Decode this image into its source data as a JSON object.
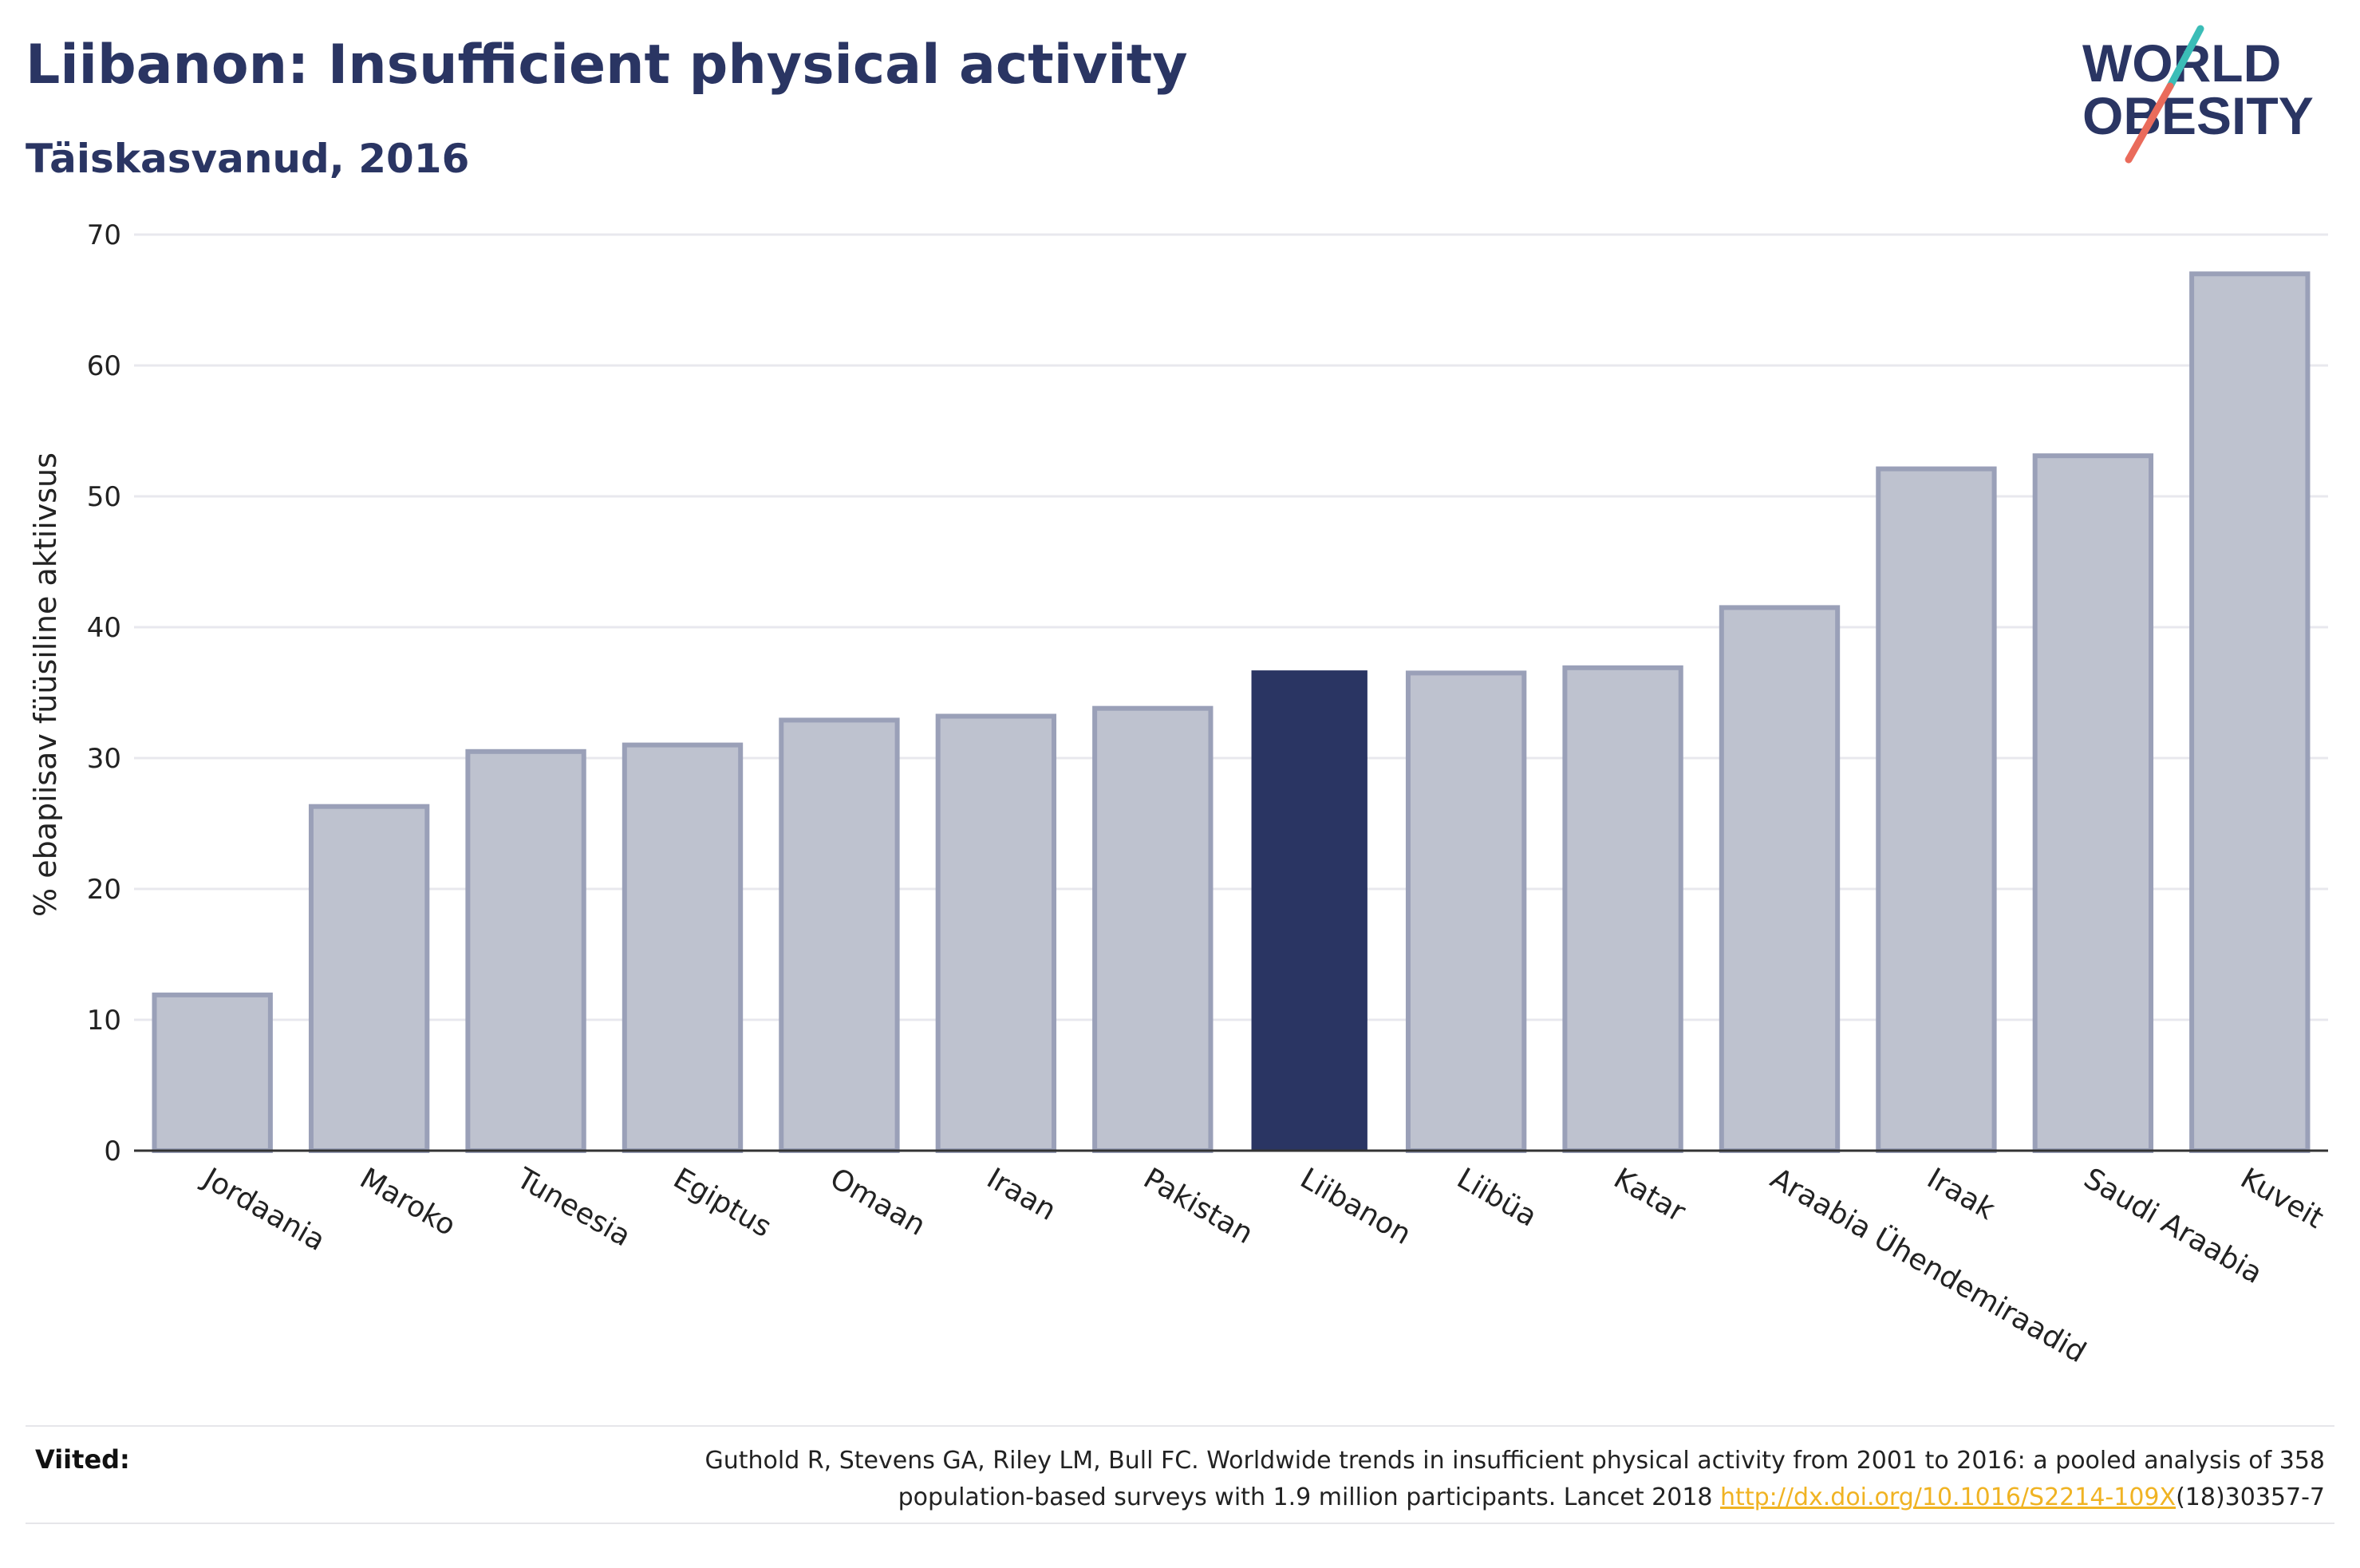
{
  "header": {
    "title": "Liibanon: Insufficient physical activity",
    "subtitle": "Täiskasvanud, 2016"
  },
  "logo": {
    "line1": "WORLD",
    "line2": "OBESITY",
    "accent_teal": "#3bbdb7",
    "accent_coral": "#ea6b5b"
  },
  "chart_data": {
    "type": "bar",
    "ylabel": "% ebapiisav füüsiline aktiivsus",
    "xlabel": "",
    "ylim": [
      0,
      70
    ],
    "yticks": [
      0,
      10,
      20,
      30,
      40,
      50,
      60,
      70
    ],
    "grid": true,
    "categories": [
      "Jordaania",
      "Maroko",
      "Tuneesia",
      "Egiptus",
      "Omaan",
      "Iraan",
      "Pakistan",
      "Liibanon",
      "Liibüa",
      "Katar",
      "Araabia Ühendemiraadid",
      "Iraak",
      "Saudi Araabia",
      "Kuveit"
    ],
    "values": [
      11.9,
      26.3,
      30.5,
      31.0,
      32.9,
      33.2,
      33.8,
      36.7,
      36.5,
      36.9,
      41.5,
      52.1,
      53.1,
      67.0
    ],
    "highlight": "Liibanon",
    "colors": {
      "bar": "#bec2cf",
      "bar_border": "#9aa0b8",
      "highlight": "#2a3563",
      "grid": "#e8e8ee",
      "axis": "#333333"
    }
  },
  "footer": {
    "label": "Viited:",
    "ref_line1": "Guthold R, Stevens GA, Riley LM, Bull FC. Worldwide trends in insufficient physical activity from 2001 to 2016: a pooled analysis of 358",
    "ref_line2_pre": "population-based surveys with 1.9 million participants. Lancet 2018 ",
    "ref_link": "http://dx.doi.org/10.1016/S2214-109X",
    "ref_line2_post": "(18)30357-7"
  }
}
